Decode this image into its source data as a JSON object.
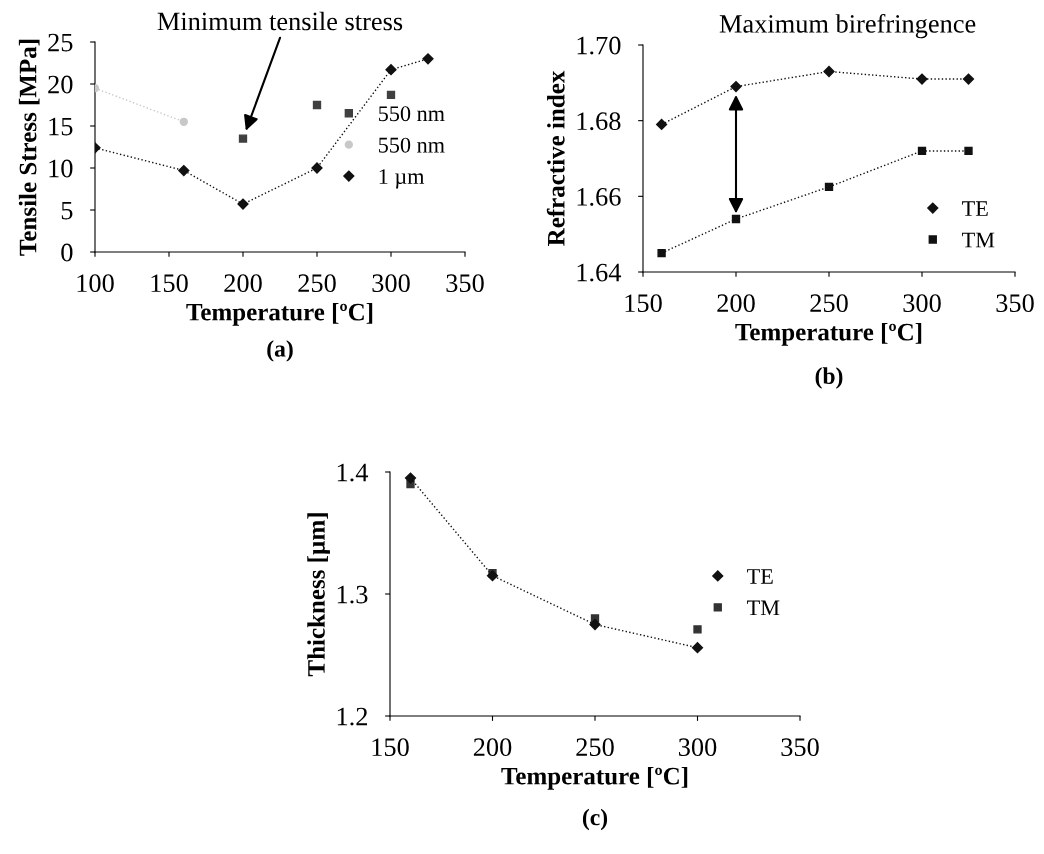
{
  "chart_data": [
    {
      "type": "scatter",
      "xlabel": "Temperature [ºC]",
      "ylabel": "Tensile Stress [MPa]",
      "xlim": [
        100,
        350
      ],
      "xticks": [
        100,
        150,
        200,
        250,
        300,
        350
      ],
      "ylim": [
        0,
        25
      ],
      "yticks": [
        0,
        5,
        10,
        15,
        20,
        25
      ],
      "grid": false,
      "legend": "right",
      "series": [
        {
          "name": "550 nm",
          "color": "#404040",
          "marker": "square",
          "x": [
            200,
            250,
            300
          ],
          "values": [
            13.5,
            17.5,
            18.7
          ]
        },
        {
          "name": "550 nm",
          "type": "line",
          "color": "#c8c8c8",
          "marker": "circle",
          "line_style": "dotted",
          "x": [
            100,
            160
          ],
          "values": [
            19.5,
            15.5
          ]
        },
        {
          "name": "1 µm",
          "type": "line",
          "color": "#111111",
          "marker": "diamond",
          "line_style": "dotted",
          "x": [
            100,
            160,
            200,
            250,
            300,
            325
          ],
          "values": [
            12.4,
            9.7,
            5.7,
            10.0,
            21.7,
            23.0
          ]
        }
      ],
      "annotations": [
        "Minimum tensile stress",
        "(a)"
      ]
    },
    {
      "type": "scatter",
      "xlabel": "Temperature [ºC]",
      "ylabel": "Refractive index",
      "xlim": [
        150,
        350
      ],
      "xticks": [
        150,
        200,
        250,
        300,
        350
      ],
      "ylim": [
        1.64,
        1.7
      ],
      "yticks": [
        {
          "value": 1.64,
          "label": "1.64"
        },
        {
          "value": 1.66,
          "label": "1.66"
        },
        {
          "value": 1.68,
          "label": "1.68"
        },
        {
          "value": 1.7,
          "label": "1.70"
        }
      ],
      "grid": false,
      "legend": "bottom right",
      "series": [
        {
          "name": "TE",
          "type": "line",
          "color": "#111111",
          "marker": "diamond",
          "line_style": "dotted",
          "x": [
            160,
            200,
            250,
            300,
            325
          ],
          "values": [
            1.679,
            1.689,
            1.693,
            1.691,
            1.691
          ]
        },
        {
          "name": "TM",
          "type": "line",
          "color": "#111111",
          "marker": "square",
          "line_style": "dotted",
          "x": [
            160,
            200,
            250,
            300,
            325
          ],
          "values": [
            1.645,
            1.654,
            1.6625,
            1.672,
            1.672
          ]
        }
      ],
      "annotations": [
        "Maximum birefringence",
        "(b)"
      ]
    },
    {
      "type": "scatter",
      "xlabel": "Temperature [ºC]",
      "ylabel": "Thickness [µm]",
      "xlim": [
        150,
        350
      ],
      "xticks": [
        150,
        200,
        250,
        300,
        350
      ],
      "ylim": [
        1.2,
        1.4
      ],
      "yticks": [
        1.2,
        1.3,
        1.4
      ],
      "grid": false,
      "legend": "right",
      "series": [
        {
          "name": "TE",
          "type": "line",
          "color": "#111111",
          "marker": "diamond",
          "line_style": "dotted",
          "x": [
            160,
            200,
            250,
            300
          ],
          "values": [
            1.395,
            1.315,
            1.275,
            1.256
          ]
        },
        {
          "name": "TM",
          "color": "#333333",
          "marker": "square",
          "x": [
            160,
            200,
            250,
            300
          ],
          "values": [
            1.39,
            1.317,
            1.28,
            1.271
          ]
        }
      ],
      "annotations": [
        "(c)"
      ]
    }
  ]
}
